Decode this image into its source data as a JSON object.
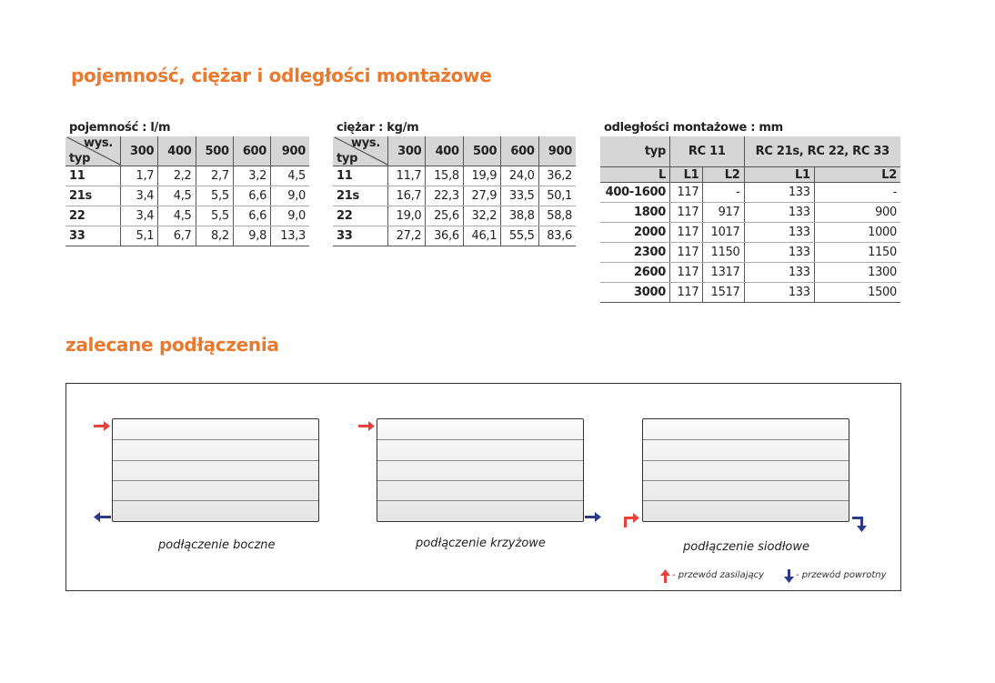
{
  "title1": "pojemność, ciężar i odległości montażowe",
  "title2": "zalecane podłączenia",
  "capacity": {
    "caption": "pojemność : l/m",
    "corner_top": "wys.",
    "corner_bottom": "typ",
    "columns": [
      "300",
      "400",
      "500",
      "600",
      "900"
    ],
    "rows": [
      [
        "11",
        "1,7",
        "2,2",
        "2,7",
        "3,2",
        "4,5"
      ],
      [
        "21s",
        "3,4",
        "4,5",
        "5,5",
        "6,6",
        "9,0"
      ],
      [
        "22",
        "3,4",
        "4,5",
        "5,5",
        "6,6",
        "9,0"
      ],
      [
        "33",
        "5,1",
        "6,7",
        "8,2",
        "9,8",
        "13,3"
      ]
    ]
  },
  "weight": {
    "caption": "ciężar : kg/m",
    "corner_top": "wys.",
    "corner_bottom": "typ",
    "columns": [
      "300",
      "400",
      "500",
      "600",
      "900"
    ],
    "rows": [
      [
        "11",
        "11,7",
        "15,8",
        "19,9",
        "24,0",
        "36,2"
      ],
      [
        "21s",
        "16,7",
        "22,3",
        "27,9",
        "33,5",
        "50,1"
      ],
      [
        "22",
        "19,0",
        "25,6",
        "32,2",
        "38,8",
        "58,8"
      ],
      [
        "33",
        "27,2",
        "36,6",
        "46,1",
        "55,5",
        "83,6"
      ]
    ]
  },
  "mounting": {
    "caption": "odległości montażowe : mm",
    "head1": [
      "typ",
      "RC 11",
      "RC 21s, RC 22, RC 33"
    ],
    "head2": [
      "L",
      "L1",
      "L2",
      "L1",
      "L2"
    ],
    "rows": [
      [
        "400-1600",
        "117",
        "-",
        "133",
        "-"
      ],
      [
        "1800",
        "117",
        "917",
        "133",
        "900"
      ],
      [
        "2000",
        "117",
        "1017",
        "133",
        "1000"
      ],
      [
        "2300",
        "117",
        "1150",
        "133",
        "1150"
      ],
      [
        "2600",
        "117",
        "1317",
        "133",
        "1300"
      ],
      [
        "3000",
        "117",
        "1517",
        "133",
        "1500"
      ]
    ]
  },
  "connections": {
    "side": "podłączenie boczne",
    "cross": "podłączenie krzyżowe",
    "saddle": "podłączenie siodłowe",
    "legend_supply": "- przewód zasilający",
    "legend_return": "- przewód powrotny"
  },
  "colors": {
    "accent": "#e8792e",
    "supply": "#e8423a",
    "return": "#2d3a8c"
  }
}
